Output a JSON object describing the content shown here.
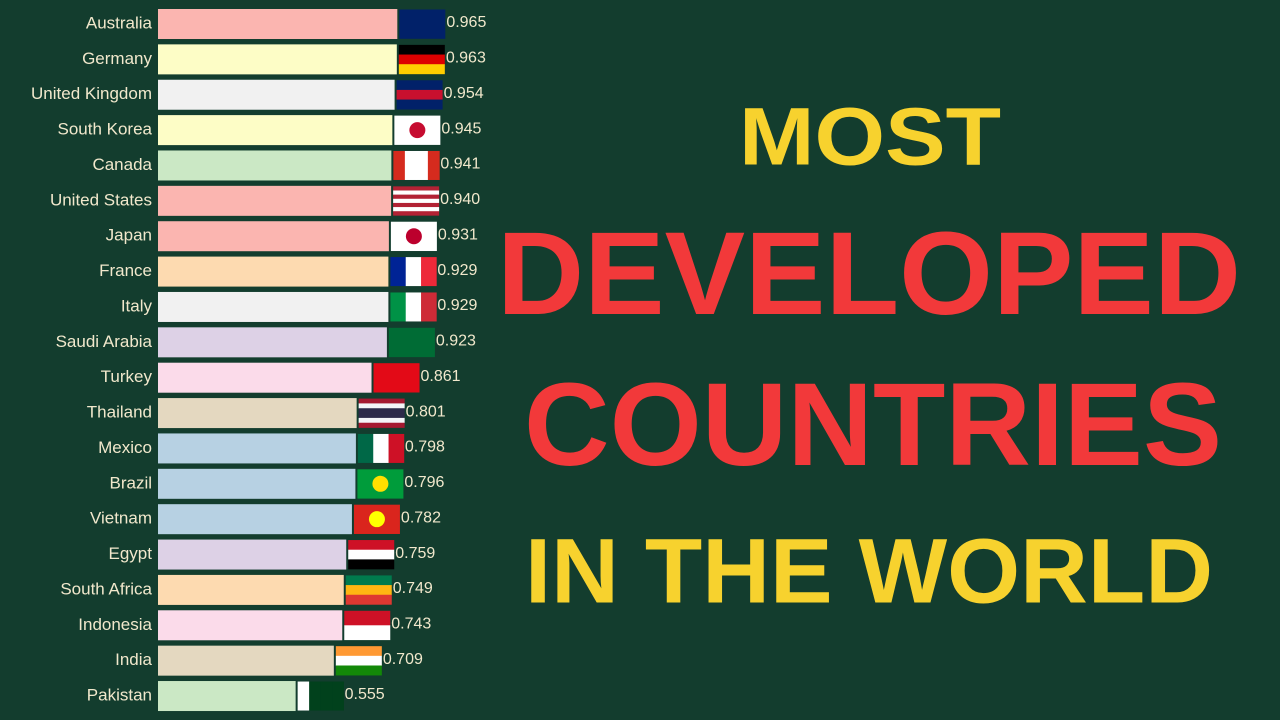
{
  "chart_data": {
    "type": "bar",
    "orientation": "horizontal",
    "title": [
      "MOST",
      "DEVELOPED",
      "COUNTRIES",
      "IN THE WORLD"
    ],
    "categories": [
      "Australia",
      "Germany",
      "United Kingdom",
      "South Korea",
      "Canada",
      "United States",
      "Japan",
      "France",
      "Italy",
      "Saudi Arabia",
      "Turkey",
      "Thailand",
      "Mexico",
      "Brazil",
      "Vietnam",
      "Egypt",
      "South Africa",
      "Indonesia",
      "India",
      "Pakistan"
    ],
    "values": [
      0.965,
      0.963,
      0.954,
      0.945,
      0.941,
      0.94,
      0.931,
      0.929,
      0.929,
      0.923,
      0.861,
      0.801,
      0.798,
      0.796,
      0.782,
      0.759,
      0.749,
      0.743,
      0.709,
      0.555
    ],
    "value_labels": [
      "0.965",
      "0.963",
      "0.954",
      "0.945",
      "0.941",
      "0.940",
      "0.931",
      "0.929",
      "0.929",
      "0.923",
      "0.861",
      "0.801",
      "0.798",
      "0.796",
      "0.782",
      "0.759",
      "0.749",
      "0.743",
      "0.709",
      "0.555"
    ],
    "colors": [
      "#fbb5b0",
      "#fdfdc6",
      "#f1f1f1",
      "#fdfdc6",
      "#cbe8c5",
      "#fbb5b0",
      "#fbb5b0",
      "#fddab0",
      "#f1f1f1",
      "#ddd1e6",
      "#fbdbea",
      "#e4d8c0",
      "#b7d1e3",
      "#b7d1e3",
      "#b7d1e3",
      "#ddd1e6",
      "#fddab0",
      "#fbdbea",
      "#e4d8c0",
      "#cbe8c5"
    ]
  }
}
